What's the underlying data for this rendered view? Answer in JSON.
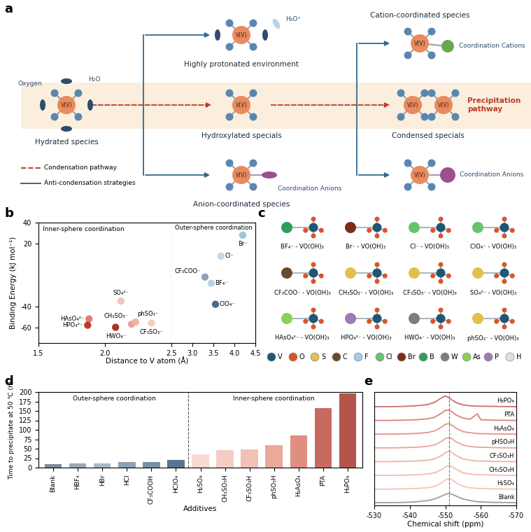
{
  "diagram": {
    "panel": "a",
    "nodes": [
      {
        "label": "Hydrated species",
        "centers": [
          "V(V)"
        ],
        "notes": [
          "Oxygen",
          "H₂O"
        ]
      },
      {
        "label": "Hydroxylated specials",
        "centers": [
          "V(V)"
        ]
      },
      {
        "label": "Highly protonated environment",
        "centers": [
          "V(V)"
        ],
        "notes": [
          "H₃O⁺"
        ]
      },
      {
        "label": "Anion-coordinated species",
        "centers": [
          "V(V)"
        ],
        "notes": [
          "Coordination Anions"
        ]
      },
      {
        "label": "Cation-coordinated species",
        "centers": [
          "V(V)"
        ],
        "notes": [
          "Coordination Cations"
        ]
      },
      {
        "label": "Condensed specials",
        "centers": [
          "V(V)",
          "V(V)"
        ],
        "notes": [
          "Precipitation pathway"
        ]
      },
      {
        "centers": [
          "V(V)"
        ],
        "notes": [
          "Coordination Anions"
        ]
      }
    ],
    "legend": [
      {
        "label": "Condensation pathway",
        "color": "#c0392b",
        "line_style": "dashed"
      },
      {
        "label": "Anti-condensation strategies",
        "color": "#2f6a8f",
        "line_style": "solid"
      }
    ]
  },
  "structures": {
    "panel": "c",
    "complexes": [
      {
        "label": "BF₄⁻ - VO(OH)₃",
        "anion": "B"
      },
      {
        "label": "Br⁻ - VO(OH)₃",
        "anion": "Br"
      },
      {
        "label": "Cl⁻ - VO(OH)₃",
        "anion": "Cl"
      },
      {
        "label": "ClO₄⁻ - VO(OH)₃",
        "anion": "Cl"
      },
      {
        "label": "CF₃COO⁻ - VO(OH)₃",
        "anion": "C"
      },
      {
        "label": "CH₃SO₃⁻ - VO(OH)₃",
        "anion": "S"
      },
      {
        "label": "CF₃SO₃⁻ - VO(OH)₃",
        "anion": "S"
      },
      {
        "label": "SO₄²⁻ - VO(OH)₃",
        "anion": "S"
      },
      {
        "label": "HAsO₄²⁻ - VO(OH)₃",
        "anion": "As"
      },
      {
        "label": "HPO₄²⁻ - VO(OH)₃",
        "anion": "P"
      },
      {
        "label": "HWO₄⁻ - VO(OH)₃",
        "anion": "W"
      },
      {
        "label": "phSO₃⁻ - VO(OH)₃",
        "anion": "S"
      }
    ],
    "elements": [
      {
        "symbol": "V",
        "color": "#1f5673"
      },
      {
        "symbol": "O",
        "color": "#d9542c"
      },
      {
        "symbol": "S",
        "color": "#e3c04b"
      },
      {
        "symbol": "C",
        "color": "#6b4a2b"
      },
      {
        "symbol": "F",
        "color": "#a8c8e8"
      },
      {
        "symbol": "Cl",
        "color": "#69c36b"
      },
      {
        "symbol": "Br",
        "color": "#7a2e1a"
      },
      {
        "symbol": "B",
        "color": "#2e9e5b"
      },
      {
        "symbol": "W",
        "color": "#7d7d7d"
      },
      {
        "symbol": "As",
        "color": "#8ccf5a"
      },
      {
        "symbol": "P",
        "color": "#9b7bb5"
      },
      {
        "symbol": "H",
        "color": "#e0e0e0"
      }
    ]
  },
  "chart_data": [
    {
      "panel": "b",
      "type": "scatter",
      "xlabel": "Distance to V atom (Å)",
      "ylabel": "Binding Energy (kJ mol⁻¹)",
      "xlim": [
        1.5,
        4.5
      ],
      "xticks": [
        1.5,
        2.0,
        2.5,
        3.0,
        3.5,
        4.0,
        4.5
      ],
      "ylim": [
        -75,
        40
      ],
      "yticks": [
        -60,
        -40,
        20,
        40
      ],
      "divider_x": 2.5,
      "annotations": [
        "Inner-sphere coordination",
        "Outer-sphere coordination"
      ],
      "point_labels": [
        "SO₄²⁻",
        "HAsO₄²⁻",
        "HPO₄²⁻",
        "HWO₄⁻",
        "CH₃SO₃⁻",
        "phSO₃⁻",
        "CF₃SO₃⁻",
        "CF₃COO⁻",
        "BF₄⁻",
        "ClO₄⁻",
        "Cl⁻",
        "Br⁻"
      ],
      "x": [
        2.12,
        1.88,
        1.87,
        2.08,
        2.2,
        2.23,
        2.35,
        3.3,
        3.45,
        3.55,
        3.68,
        4.2
      ],
      "values": [
        -35,
        -52,
        -58,
        -60,
        -57,
        -55,
        -56,
        -12,
        -18,
        -38,
        8,
        28
      ],
      "colors": [
        "#f2c4c4",
        "#e07b7b",
        "#c0392b",
        "#a93226",
        "#e8a0a0",
        "#f0b3a8",
        "#f5cdbd",
        "#8fa3b8",
        "#b7d3e3",
        "#4a6a8a",
        "#c3d7e6",
        "#9ec5e0"
      ]
    },
    {
      "panel": "d",
      "type": "bar",
      "xlabel": "Additives",
      "ylabel": "Time to precipitate at 50 ℃ (h)",
      "categories": [
        "Blank",
        "HBF₄",
        "HBr",
        "HCl",
        "CF₃COOH",
        "HClO₄",
        "H₂SO₄",
        "CH₃SO₃H",
        "CF₃SO₃H",
        "phSO₃H",
        "H₃AsO₄",
        "PTA",
        "H₃PO₄"
      ],
      "values": [
        10,
        11,
        12,
        14,
        14,
        20,
        36,
        47,
        48,
        60,
        86,
        158,
        196
      ],
      "colors": [
        "#7f8c99",
        "#9aa8b5",
        "#a9b8c6",
        "#8ea2b5",
        "#7890a8",
        "#5b7590",
        "#f7d9d2",
        "#f4cdc4",
        "#f1c0b6",
        "#eaa99b",
        "#df8f80",
        "#c96a60",
        "#b5544c"
      ],
      "ylim": [
        0,
        200
      ],
      "yticks": [
        0,
        25,
        50,
        75,
        100,
        125,
        150,
        175,
        200
      ],
      "divider_x": 5.5,
      "annotations": [
        "Outer-sphere coordination",
        "Inner-sphere coordination"
      ]
    },
    {
      "panel": "e",
      "type": "line",
      "xlabel": "Chemical shift (ppm)",
      "xlim": [
        -530,
        -570
      ],
      "xticks": [
        -530,
        -540,
        -550,
        -560,
        -570
      ],
      "reference_x": -551,
      "tick_labels": "x",
      "x": [
        -530,
        -534,
        -538,
        -542,
        -545,
        -547,
        -549,
        -550,
        -551,
        -552,
        -553,
        -555,
        -557,
        -559,
        -560,
        -564,
        -570
      ],
      "series": [
        {
          "name": "Blank",
          "color": "#9e9e9e",
          "values": [
            0.02,
            0.02,
            0.03,
            0.06,
            0.11,
            0.18,
            0.31,
            0.38,
            0.42,
            0.38,
            0.31,
            0.18,
            0.11,
            0.06,
            0.05,
            0.03,
            0.02
          ]
        },
        {
          "name": "H₂SO₄",
          "color": "#f5c6b8",
          "values": [
            0.01,
            0.01,
            0.02,
            0.04,
            0.07,
            0.13,
            0.29,
            0.41,
            0.48,
            0.41,
            0.29,
            0.13,
            0.07,
            0.04,
            0.04,
            0.02,
            0.01
          ]
        },
        {
          "name": "CH₃SO₃H",
          "color": "#f2bcae",
          "values": [
            0.01,
            0.01,
            0.02,
            0.04,
            0.07,
            0.12,
            0.27,
            0.38,
            0.45,
            0.39,
            0.28,
            0.12,
            0.07,
            0.04,
            0.04,
            0.02,
            0.01
          ]
        },
        {
          "name": "CF₃SO₃H",
          "color": "#efb3a5",
          "values": [
            0.01,
            0.01,
            0.02,
            0.04,
            0.07,
            0.13,
            0.28,
            0.4,
            0.46,
            0.4,
            0.28,
            0.13,
            0.07,
            0.04,
            0.04,
            0.02,
            0.01
          ]
        },
        {
          "name": "pHSO₃H",
          "color": "#e9a596",
          "values": [
            0.01,
            0.01,
            0.02,
            0.04,
            0.08,
            0.14,
            0.3,
            0.42,
            0.47,
            0.4,
            0.28,
            0.13,
            0.07,
            0.04,
            0.04,
            0.02,
            0.01
          ]
        },
        {
          "name": "H₃AsO₄",
          "color": "#e39487",
          "values": [
            0.01,
            0.01,
            0.02,
            0.04,
            0.08,
            0.15,
            0.32,
            0.44,
            0.47,
            0.39,
            0.27,
            0.12,
            0.07,
            0.04,
            0.03,
            0.02,
            0.01
          ]
        },
        {
          "name": "PTA",
          "color": "#d98478",
          "values": [
            0.01,
            0.01,
            0.02,
            0.04,
            0.08,
            0.15,
            0.33,
            0.45,
            0.46,
            0.37,
            0.25,
            0.11,
            0.06,
            0.3,
            0.04,
            0.02,
            0.01
          ]
        },
        {
          "name": "H₃PO₄",
          "color": "#c9706a",
          "values": [
            0.01,
            0.01,
            0.02,
            0.05,
            0.1,
            0.2,
            0.4,
            0.48,
            0.41,
            0.29,
            0.19,
            0.09,
            0.05,
            0.03,
            0.03,
            0.02,
            0.01
          ]
        }
      ]
    }
  ]
}
